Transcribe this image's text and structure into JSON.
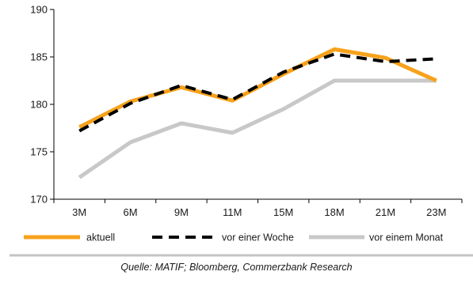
{
  "chart_data": {
    "type": "line",
    "categories": [
      "3M",
      "6M",
      "9M",
      "11M",
      "15M",
      "18M",
      "21M",
      "23M"
    ],
    "ylim": [
      170,
      190
    ],
    "yticks": [
      170,
      175,
      180,
      185,
      190
    ],
    "grid": false,
    "legend_position": "bottom",
    "series": [
      {
        "name": "vor einem Monat",
        "color": "#c8c8c8",
        "style": "solid",
        "values": [
          172.3,
          176.0,
          178.0,
          177.0,
          179.5,
          182.5,
          182.5,
          182.5
        ]
      },
      {
        "name": "aktuell",
        "color": "#f7a21b",
        "style": "solid",
        "values": [
          177.6,
          180.3,
          181.8,
          180.4,
          183.2,
          185.8,
          184.9,
          182.5
        ]
      },
      {
        "name": "vor einer Woche",
        "color": "#000000",
        "style": "dashed",
        "values": [
          177.2,
          180.1,
          182.0,
          180.5,
          183.4,
          185.3,
          184.5,
          184.8
        ]
      }
    ],
    "legend_order": [
      "aktuell",
      "vor einer Woche",
      "vor einem Monat"
    ]
  },
  "source_note": "Quelle: MATIF; Bloomberg, Commerzbank Research"
}
